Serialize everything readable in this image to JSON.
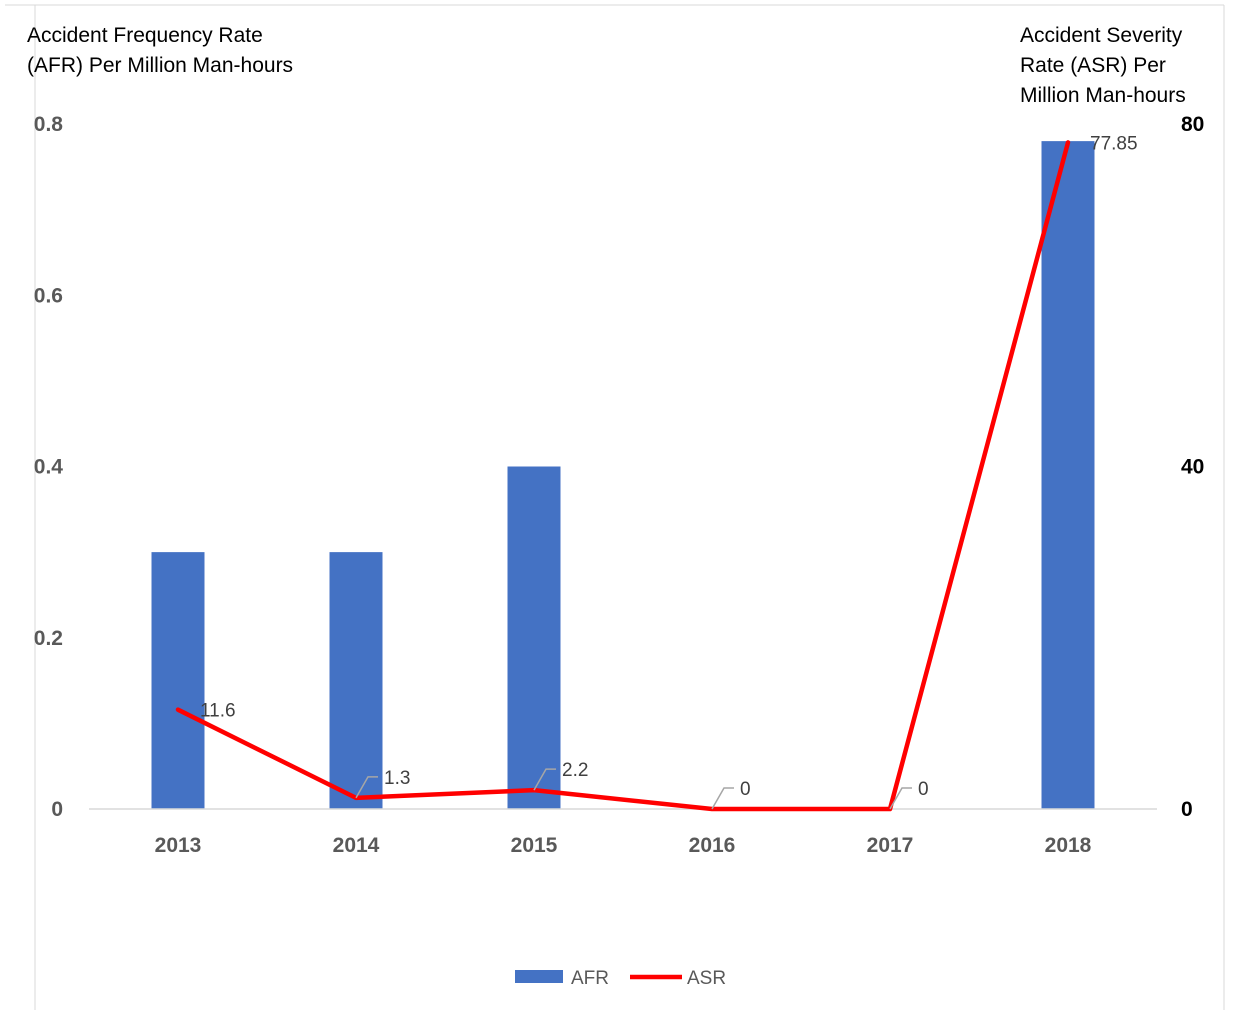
{
  "chart_data": {
    "type": "bar",
    "categories": [
      "2013",
      "2014",
      "2015",
      "2016",
      "2017",
      "2018"
    ],
    "series": [
      {
        "name": "AFR",
        "type": "bar",
        "axis": "left",
        "values": [
          0.3,
          0.3,
          0.4,
          0,
          0,
          0.78
        ],
        "color": "#4472C4"
      },
      {
        "name": "ASR",
        "type": "line",
        "axis": "right",
        "values": [
          11.6,
          1.3,
          2.2,
          0,
          0,
          77.85
        ],
        "data_labels": [
          "11.6",
          "1.3",
          "2.2",
          "0",
          "0",
          "77.85"
        ],
        "color": "#FF0000"
      }
    ],
    "ylabel_left": "Accident Frequency Rate (AFR) Per Million Man-hours",
    "ylabel_left_lines": [
      "Accident Frequency Rate",
      "(AFR) Per Million Man-hours"
    ],
    "ylabel_right": "Accident Severity Rate (ASR) Per Million Man-hours",
    "ylabel_right_lines": [
      "Accident Severity",
      "Rate (ASR) Per",
      "Million Man-hours"
    ],
    "ylim_left": [
      0,
      0.8
    ],
    "yticks_left": [
      "0",
      "0.2",
      "0.4",
      "0.6",
      "0.8"
    ],
    "ylim_right": [
      0,
      80
    ],
    "yticks_right": [
      "0",
      "40",
      "80"
    ],
    "grid": false,
    "legend": {
      "position": "bottom",
      "entries": [
        "AFR",
        "ASR"
      ]
    }
  }
}
